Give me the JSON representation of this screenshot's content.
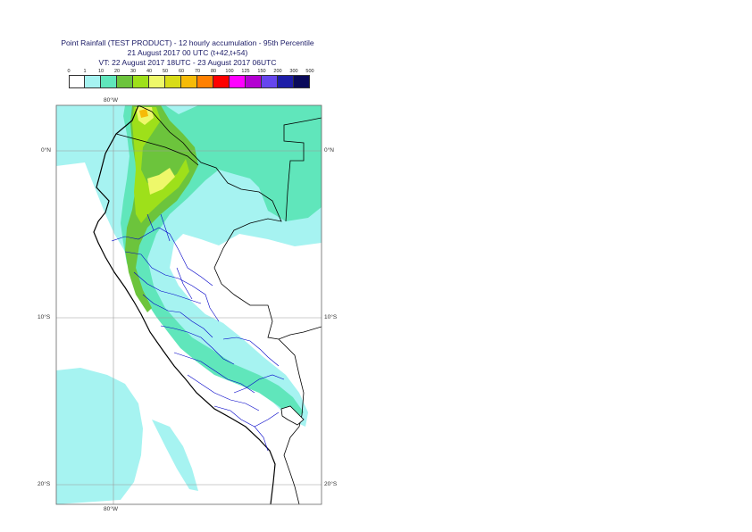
{
  "title": {
    "line1": "Point Rainfall (TEST PRODUCT) - 12 hourly accumulation - 95th Percentile",
    "line2": "21 August 2017 00 UTC (t+42,t+54)",
    "line3": "VT: 22 August 2017 18UTC - 23 August 2017 06UTC"
  },
  "legend": {
    "ticks": [
      "0",
      "1",
      "10",
      "20",
      "30",
      "40",
      "50",
      "60",
      "70",
      "80",
      "100",
      "125",
      "150",
      "200",
      "300",
      "500"
    ],
    "colors": [
      "#ffffff",
      "#a6f3f1",
      "#60e6bb",
      "#6cc43c",
      "#9ee01a",
      "#eef86a",
      "#d8dc18",
      "#f6bb08",
      "#ff8000",
      "#ff0000",
      "#ff00ff",
      "#b400d2",
      "#6646ee",
      "#1e1ea8",
      "#0a0a5a"
    ]
  },
  "map": {
    "lon_labels": {
      "top": "80°W",
      "bottom": "80°W"
    },
    "lat_labels": [
      "0°N",
      "10°S",
      "20°S"
    ]
  }
}
